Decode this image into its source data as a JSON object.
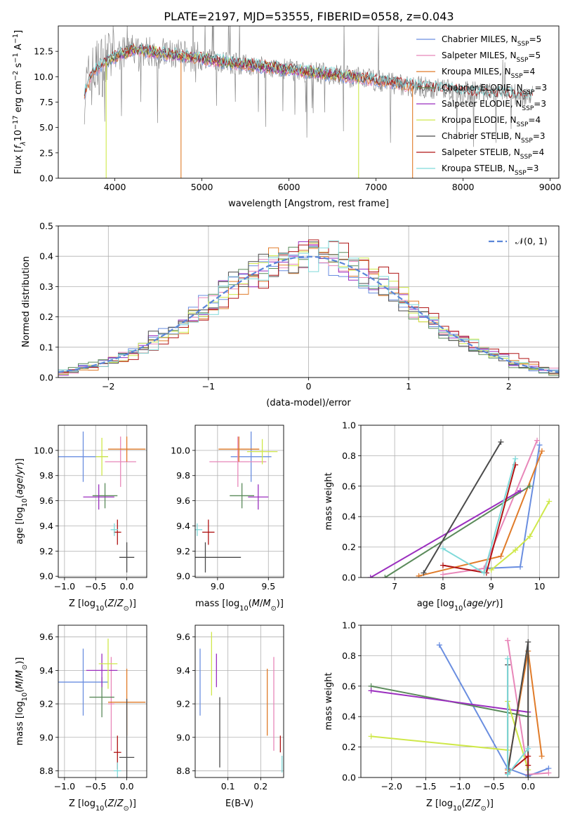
{
  "title": "PLATE=2197, MJD=53555, FIBERID=0558, z=0.043",
  "chart_data": [
    {
      "id": "spectrum",
      "type": "line",
      "xlabel": "wavelength [Angstrom, rest frame]",
      "ylabel": "Flux [f_λ 10^-17 erg cm^-2 s^-1 A^-1]",
      "xlim": [
        3350,
        9100
      ],
      "ylim": [
        0,
        15
      ],
      "xticks": [
        4000,
        5000,
        6000,
        7000,
        8000,
        9000
      ],
      "yticks": [
        0.0,
        2.5,
        5.0,
        7.5,
        10.0,
        12.5
      ],
      "observed_color": "#8c8c8c",
      "continuum": [
        [
          3650,
          8.5
        ],
        [
          3760,
          10.5
        ],
        [
          3900,
          11.5
        ],
        [
          4050,
          12.2
        ],
        [
          4200,
          12.6
        ],
        [
          4400,
          12.5
        ],
        [
          4700,
          12.1
        ],
        [
          5000,
          11.8
        ],
        [
          5300,
          11.4
        ],
        [
          5600,
          11.1
        ],
        [
          5900,
          10.8
        ],
        [
          6200,
          10.5
        ],
        [
          6500,
          10.2
        ],
        [
          6800,
          9.9
        ],
        [
          7100,
          9.5
        ],
        [
          7400,
          9.1
        ],
        [
          7700,
          8.8
        ],
        [
          8000,
          8.5
        ],
        [
          8400,
          8.3
        ],
        [
          8800,
          8.1
        ]
      ],
      "legend": [
        {
          "name": "Chabrier MILES, N_SSP=5",
          "color": "#6a8ee0",
          "range": [
            3650,
            7420
          ]
        },
        {
          "name": "Salpeter MILES, N_SSP=5",
          "color": "#e887b9",
          "range": [
            3650,
            7420
          ]
        },
        {
          "name": "Kroupa MILES, N_SSP=4",
          "color": "#e07b29",
          "range": [
            3650,
            7420
          ]
        },
        {
          "name": "Chabrier ELODIE, N_SSP=3",
          "color": "#5a8a5a",
          "range": [
            3900,
            6800
          ]
        },
        {
          "name": "Salpeter ELODIE, N_SSP=3",
          "color": "#9b2fbf",
          "range": [
            3900,
            6800
          ]
        },
        {
          "name": "Kroupa ELODIE, N_SSP=4",
          "color": "#cfe84a",
          "range": [
            3900,
            6800
          ]
        },
        {
          "name": "Chabrier STELIB, N_SSP=3",
          "color": "#4a4a4a",
          "range": [
            3650,
            8800
          ]
        },
        {
          "name": "Salpeter STELIB, N_SSP=4",
          "color": "#b01515",
          "range": [
            3650,
            8800
          ]
        },
        {
          "name": "Kroupa STELIB, N_SSP=3",
          "color": "#7fd9d9",
          "range": [
            3650,
            8800
          ]
        }
      ],
      "drops": [
        {
          "x": 3900,
          "color": "#cfe84a"
        },
        {
          "x": 4760,
          "color": "#e07b29"
        },
        {
          "x": 6800,
          "color": "#cfe84a"
        },
        {
          "x": 7420,
          "color": "#e07b29"
        }
      ]
    },
    {
      "id": "residuals",
      "type": "line",
      "xlabel": "(data-model)/error",
      "ylabel": "Normed distribution",
      "xlim": [
        -2.5,
        2.5
      ],
      "ylim": [
        0,
        0.5
      ],
      "xticks": [
        -2,
        -1,
        0,
        1,
        2
      ],
      "yticks": [
        0.0,
        0.1,
        0.2,
        0.3,
        0.4,
        0.5
      ],
      "legend_label": "N(0,1)",
      "legend_color": "#5b86d8",
      "hist_colors": [
        "#6a8ee0",
        "#e887b9",
        "#e07b29",
        "#5a8a5a",
        "#9b2fbf",
        "#cfe84a",
        "#4a4a4a",
        "#b01515",
        "#7fd9d9"
      ]
    },
    {
      "id": "age-vs-Z",
      "type": "scatter",
      "xlabel": "Z [log10(Z/Z_sun)]",
      "ylabel": "age [log10(age/yr)]",
      "xlim": [
        -1.1,
        0.32
      ],
      "ylim": [
        8.99,
        10.2
      ],
      "xticks": [
        -1.0,
        -0.5,
        0.0
      ],
      "yticks": [
        9.0,
        9.2,
        9.4,
        9.6,
        9.8,
        10.0
      ],
      "points": [
        {
          "x": -0.7,
          "y": 9.95,
          "xerr": 0.4,
          "yerr": 0.2,
          "color": "#6a8ee0"
        },
        {
          "x": -0.1,
          "y": 9.91,
          "xerr": 0.25,
          "yerr": 0.2,
          "color": "#e887b9"
        },
        {
          "x": 0.0,
          "y": 10.01,
          "xerr": 0.3,
          "yerr": 0.1,
          "color": "#e07b29"
        },
        {
          "x": -0.35,
          "y": 9.64,
          "xerr": 0.2,
          "yerr": 0.1,
          "color": "#5a8a5a"
        },
        {
          "x": -0.45,
          "y": 9.63,
          "xerr": 0.25,
          "yerr": 0.1,
          "color": "#9b2fbf"
        },
        {
          "x": -0.4,
          "y": 9.95,
          "xerr": 0.1,
          "yerr": 0.15,
          "color": "#cfe84a"
        },
        {
          "x": 0.0,
          "y": 9.15,
          "xerr": 0.12,
          "yerr": 0.12,
          "color": "#4a4a4a"
        },
        {
          "x": -0.15,
          "y": 9.35,
          "xerr": 0.06,
          "yerr": 0.1,
          "color": "#b01515"
        },
        {
          "x": -0.2,
          "y": 9.37,
          "xerr": 0.06,
          "yerr": 0.05,
          "color": "#7fd9d9"
        }
      ]
    },
    {
      "id": "age-vs-mass",
      "type": "scatter",
      "xlabel": "mass [log10(M/M_sun)]",
      "ylabel": "",
      "xlim": [
        8.78,
        9.65
      ],
      "ylim": [
        8.99,
        10.2
      ],
      "xticks": [
        9.0,
        9.5
      ],
      "yticks": [
        9.0,
        9.2,
        9.4,
        9.6,
        9.8,
        10.0
      ],
      "points": [
        {
          "x": 9.33,
          "y": 9.95,
          "xerr": 0.2,
          "yerr": 0.2,
          "color": "#6a8ee0"
        },
        {
          "x": 9.2,
          "y": 9.91,
          "xerr": 0.28,
          "yerr": 0.2,
          "color": "#e887b9"
        },
        {
          "x": 9.21,
          "y": 10.01,
          "xerr": 0.2,
          "yerr": 0.1,
          "color": "#e07b29"
        },
        {
          "x": 9.24,
          "y": 9.64,
          "xerr": 0.12,
          "yerr": 0.1,
          "color": "#5a8a5a"
        },
        {
          "x": 9.4,
          "y": 9.63,
          "xerr": 0.1,
          "yerr": 0.1,
          "color": "#9b2fbf"
        },
        {
          "x": 9.44,
          "y": 9.99,
          "xerr": 0.15,
          "yerr": 0.1,
          "color": "#cfe84a"
        },
        {
          "x": 8.88,
          "y": 9.15,
          "xerr": 0.35,
          "yerr": 0.12,
          "color": "#4a4a4a"
        },
        {
          "x": 8.91,
          "y": 9.35,
          "xerr": 0.06,
          "yerr": 0.1,
          "color": "#b01515"
        },
        {
          "x": 8.8,
          "y": 9.37,
          "xerr": 0.05,
          "yerr": 0.05,
          "color": "#7fd9d9"
        }
      ]
    },
    {
      "id": "weight-vs-age",
      "type": "line",
      "xlabel": "age [log10(age/yr)]",
      "ylabel": "mass weight",
      "xlim": [
        6.3,
        10.4
      ],
      "ylim": [
        0,
        1.0
      ],
      "xticks": [
        7,
        8,
        9,
        10
      ],
      "yticks": [
        0.0,
        0.2,
        0.4,
        0.6,
        0.8,
        1.0
      ],
      "series": [
        {
          "color": "#6a8ee0",
          "points": [
            [
              8.9,
              0.06
            ],
            [
              9.6,
              0.07
            ],
            [
              10.0,
              0.87
            ]
          ]
        },
        {
          "color": "#e887b9",
          "points": [
            [
              8.0,
              0.02
            ],
            [
              8.85,
              0.06
            ],
            [
              9.95,
              0.9
            ]
          ]
        },
        {
          "color": "#e07b29",
          "points": [
            [
              7.5,
              0.01
            ],
            [
              9.2,
              0.14
            ],
            [
              10.05,
              0.83
            ]
          ]
        },
        {
          "color": "#5a8a5a",
          "points": [
            [
              6.8,
              0.0
            ],
            [
              9.8,
              0.6
            ]
          ]
        },
        {
          "color": "#9b2fbf",
          "points": [
            [
              6.5,
              0.0
            ],
            [
              9.6,
              0.57
            ]
          ]
        },
        {
          "color": "#cfe84a",
          "points": [
            [
              9.0,
              0.05
            ],
            [
              9.5,
              0.18
            ],
            [
              9.8,
              0.27
            ],
            [
              10.2,
              0.5
            ]
          ]
        },
        {
          "color": "#4a4a4a",
          "points": [
            [
              7.6,
              0.03
            ],
            [
              9.2,
              0.89
            ]
          ]
        },
        {
          "color": "#b01515",
          "points": [
            [
              8.0,
              0.08
            ],
            [
              8.9,
              0.03
            ],
            [
              9.5,
              0.74
            ]
          ]
        },
        {
          "color": "#7fd9d9",
          "points": [
            [
              8.0,
              0.19
            ],
            [
              8.85,
              0.03
            ],
            [
              9.5,
              0.78
            ]
          ]
        }
      ]
    },
    {
      "id": "mass-vs-Z",
      "type": "scatter",
      "xlabel": "Z [log10(Z/Z_sun)]",
      "ylabel": "mass [log10(M/M_sun)]",
      "xlim": [
        -1.1,
        0.32
      ],
      "ylim": [
        8.76,
        9.67
      ],
      "xticks": [
        -1.0,
        -0.5,
        0.0
      ],
      "yticks": [
        8.8,
        9.0,
        9.2,
        9.4,
        9.6
      ],
      "points": [
        {
          "x": -0.7,
          "y": 9.33,
          "xerr": 0.4,
          "yerr": 0.2,
          "color": "#6a8ee0"
        },
        {
          "x": -0.25,
          "y": 9.2,
          "xerr": 0.05,
          "yerr": 0.28,
          "color": "#e887b9"
        },
        {
          "x": 0.0,
          "y": 9.21,
          "xerr": 0.3,
          "yerr": 0.2,
          "color": "#e07b29"
        },
        {
          "x": -0.4,
          "y": 9.24,
          "xerr": 0.2,
          "yerr": 0.12,
          "color": "#5a8a5a"
        },
        {
          "x": -0.4,
          "y": 9.4,
          "xerr": 0.25,
          "yerr": 0.1,
          "color": "#9b2fbf"
        },
        {
          "x": -0.3,
          "y": 9.44,
          "xerr": 0.15,
          "yerr": 0.15,
          "color": "#cfe84a"
        },
        {
          "x": 0.0,
          "y": 8.88,
          "xerr": 0.12,
          "yerr": 0.35,
          "color": "#4a4a4a"
        },
        {
          "x": -0.15,
          "y": 8.91,
          "xerr": 0.06,
          "yerr": 0.1,
          "color": "#b01515"
        },
        {
          "x": -0.15,
          "y": 8.8,
          "xerr": 0.06,
          "yerr": 0.05,
          "color": "#7fd9d9"
        }
      ]
    },
    {
      "id": "mass-vs-EBV",
      "type": "scatter",
      "xlabel": "E(B-V)",
      "ylabel": "",
      "xlim": [
        0.0,
        0.27
      ],
      "ylim": [
        8.76,
        9.67
      ],
      "xticks": [
        0.1,
        0.2
      ],
      "yticks": [
        8.8,
        9.0,
        9.2,
        9.4,
        9.6
      ],
      "points": [
        {
          "x": 0.015,
          "y": 9.33,
          "yerr": 0.2,
          "color": "#6a8ee0"
        },
        {
          "x": 0.24,
          "y": 9.2,
          "yerr": 0.28,
          "color": "#e887b9"
        },
        {
          "x": 0.22,
          "y": 9.21,
          "yerr": 0.2,
          "color": "#e07b29"
        },
        {
          "x": 0.065,
          "y": 9.4,
          "yerr": 0.1,
          "color": "#9b2fbf"
        },
        {
          "x": 0.05,
          "y": 9.44,
          "yerr": 0.19,
          "color": "#cfe84a"
        },
        {
          "x": 0.075,
          "y": 9.03,
          "yerr": 0.21,
          "color": "#4a4a4a"
        },
        {
          "x": 0.26,
          "y": 8.96,
          "yerr": 0.05,
          "color": "#b01515"
        },
        {
          "x": 0.265,
          "y": 8.84,
          "yerr": 0.05,
          "color": "#7fd9d9"
        }
      ]
    },
    {
      "id": "weight-vs-Z",
      "type": "line",
      "xlabel": "Z [log10(Z/Z_sun)]",
      "ylabel": "mass weight",
      "xlim": [
        -2.45,
        0.45
      ],
      "ylim": [
        0,
        1.0
      ],
      "xticks": [
        -2.0,
        -1.5,
        -1.0,
        -0.5,
        0.0
      ],
      "yticks": [
        0.0,
        0.2,
        0.4,
        0.6,
        0.8,
        1.0
      ],
      "series": [
        {
          "color": "#6a8ee0",
          "points": [
            [
              -1.3,
              0.87
            ],
            [
              -0.3,
              0.06
            ],
            [
              0.0,
              0.01
            ],
            [
              0.3,
              0.06
            ]
          ]
        },
        {
          "color": "#e887b9",
          "points": [
            [
              -0.3,
              0.9
            ],
            [
              0.0,
              0.02
            ],
            [
              0.3,
              0.03
            ]
          ]
        },
        {
          "color": "#e07b29",
          "points": [
            [
              -0.3,
              0.05
            ],
            [
              0.0,
              0.83
            ],
            [
              0.2,
              0.14
            ]
          ]
        },
        {
          "color": "#5a8a5a",
          "points": [
            [
              -2.3,
              0.6
            ],
            [
              0.0,
              0.4
            ]
          ]
        },
        {
          "color": "#9b2fbf",
          "points": [
            [
              -2.3,
              0.57
            ],
            [
              0.0,
              0.43
            ]
          ]
        },
        {
          "color": "#cfe84a",
          "points": [
            [
              -2.3,
              0.27
            ],
            [
              -0.3,
              0.18
            ],
            [
              -0.3,
              0.5
            ],
            [
              0.0,
              0.05
            ]
          ]
        },
        {
          "color": "#4a4a4a",
          "points": [
            [
              -0.3,
              0.74
            ],
            [
              -0.3,
              0.03
            ],
            [
              0.0,
              0.89
            ],
            [
              0.0,
              0.0
            ]
          ]
        },
        {
          "color": "#b01515",
          "points": [
            [
              -0.3,
              0.03
            ],
            [
              0.0,
              0.14
            ],
            [
              0.0,
              0.08
            ]
          ]
        },
        {
          "color": "#7fd9d9",
          "points": [
            [
              -0.3,
              0.78
            ],
            [
              -0.3,
              0.02
            ],
            [
              0.0,
              0.19
            ]
          ]
        }
      ]
    }
  ]
}
